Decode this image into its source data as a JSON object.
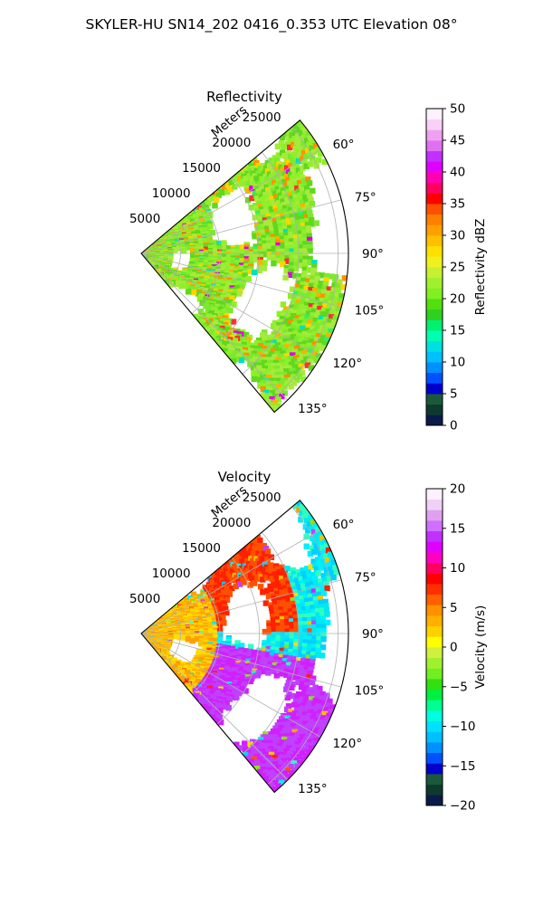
{
  "suptitle": "SKYLER-HU  SN14_202  0416_0.353 UTC Elevation 08°",
  "chart_data": [
    {
      "type": "polar-ppi",
      "title": "Reflectivity",
      "range_label": "Meters",
      "range_ticks": [
        5000,
        10000,
        15000,
        20000,
        25000
      ],
      "range_max": 25000,
      "azimuth_range_deg": [
        50,
        140
      ],
      "azimuth_ticks": [
        "60°",
        "75°",
        "90°",
        "105°",
        "120°",
        "135°"
      ],
      "azimuth_tick_values": [
        60,
        75,
        90,
        105,
        120,
        135
      ],
      "colorbar": {
        "label": "Reflectivity dBZ",
        "min": 0,
        "max": 50,
        "ticks": [
          0,
          5,
          10,
          15,
          20,
          25,
          30,
          35,
          40,
          45,
          50
        ],
        "colors": [
          "#0a1a4a",
          "#0e3a2e",
          "#1a5a3a",
          "#0000cc",
          "#0050ff",
          "#0090ff",
          "#00c0ff",
          "#00e0e0",
          "#00ffb0",
          "#00f070",
          "#30d020",
          "#50e010",
          "#80f020",
          "#a0f030",
          "#c8f030",
          "#f0f020",
          "#ffe000",
          "#ffc000",
          "#ffa000",
          "#ff8000",
          "#ff5000",
          "#ff0000",
          "#ff0060",
          "#ff00b0",
          "#e000ff",
          "#c030ff",
          "#e070f0",
          "#f0a0f0",
          "#f8d0f8",
          "#fff0ff"
        ]
      },
      "field_colors": [
        "#7ee830",
        "#5fd81e",
        "#a6ea3a",
        "#8ef028",
        "#ffd400",
        "#ffb000",
        "#ff9000",
        "#00e0c0",
        "#30f060",
        "#ff3030",
        "#e000e0"
      ]
    },
    {
      "type": "polar-ppi",
      "title": "Velocity",
      "range_label": "Meters",
      "range_ticks": [
        5000,
        10000,
        15000,
        20000,
        25000
      ],
      "range_max": 25000,
      "azimuth_range_deg": [
        50,
        140
      ],
      "azimuth_ticks": [
        "60°",
        "75°",
        "90°",
        "105°",
        "120°",
        "135°"
      ],
      "azimuth_tick_values": [
        60,
        75,
        90,
        105,
        120,
        135
      ],
      "colorbar": {
        "label": "Velocity (m/s)",
        "min": -20,
        "max": 20,
        "ticks": [
          -20,
          -15,
          -10,
          -5,
          0,
          5,
          10,
          15,
          20
        ],
        "colors": [
          "#0a1a4a",
          "#0e3a2e",
          "#1a5a3a",
          "#0000cc",
          "#0050ff",
          "#0090ff",
          "#00c0ff",
          "#00e0ff",
          "#00ffe0",
          "#00ff90",
          "#00f040",
          "#30e010",
          "#70f020",
          "#a0f030",
          "#d0f040",
          "#ffff00",
          "#ffd000",
          "#ffb000",
          "#ff9000",
          "#ff6000",
          "#ff3000",
          "#ff0000",
          "#ff0060",
          "#ff00c0",
          "#e000ff",
          "#c030ff",
          "#d070ff",
          "#e0a0f0",
          "#f0d0f8",
          "#fff0ff"
        ]
      },
      "field_colors": [
        "#ffdc00",
        "#ffc000",
        "#ffa000",
        "#ff5000",
        "#ff2000",
        "#d020ff",
        "#c040ff",
        "#00e8f0",
        "#00f0ff",
        "#30ffc0",
        "#00d0ff",
        "#8ee020"
      ]
    }
  ]
}
